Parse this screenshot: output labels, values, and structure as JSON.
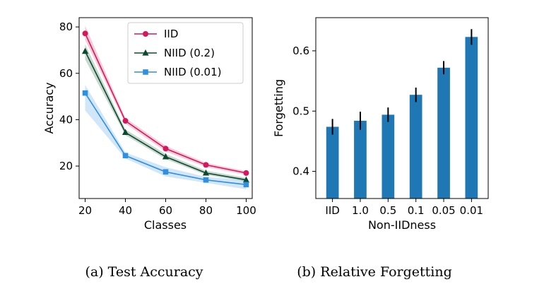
{
  "chart_data": [
    {
      "type": "line",
      "panel": "(a)",
      "caption": "(a)  Test Accuracy",
      "xlabel": "Classes",
      "ylabel": "Accuracy",
      "x": [
        20,
        40,
        60,
        80,
        100
      ],
      "xticks": [
        20,
        40,
        60,
        80,
        100
      ],
      "yticks": [
        20,
        40,
        60,
        80
      ],
      "xlim": [
        17,
        103
      ],
      "ylim": [
        6,
        84
      ],
      "grid": false,
      "legend_position": "top-right",
      "series": [
        {
          "name": "IID",
          "color": "#d6175c",
          "marker": "circle",
          "values": [
            77.2,
            39.5,
            27.5,
            20.5,
            17.0
          ],
          "lower": [
            74.5,
            38.3,
            26.3,
            19.6,
            16.2
          ],
          "upper": [
            80.5,
            40.7,
            28.7,
            21.4,
            17.8
          ]
        },
        {
          "name": "NIID (0.2)",
          "color": "#0b4a2e",
          "marker": "triangle",
          "values": [
            69.5,
            34.5,
            24.0,
            17.0,
            14.0
          ],
          "lower": [
            66.0,
            33.3,
            23.0,
            16.2,
            13.3
          ],
          "upper": [
            72.5,
            35.8,
            25.2,
            18.0,
            14.9
          ]
        },
        {
          "name": "NIID (0.01)",
          "color": "#2f8fe0",
          "marker": "square",
          "values": [
            51.5,
            24.5,
            17.5,
            14.0,
            12.0
          ],
          "lower": [
            44.0,
            23.3,
            15.5,
            12.8,
            10.0
          ],
          "upper": [
            55.0,
            25.8,
            19.5,
            15.3,
            13.8
          ]
        }
      ]
    },
    {
      "type": "bar",
      "panel": "(b)",
      "caption": "(b)  Relative Forgetting",
      "xlabel": "Non-IIDness",
      "ylabel": "Forgetting",
      "categories": [
        "IID",
        "1.0",
        "0.5",
        "0.1",
        "0.05",
        "0.01"
      ],
      "values": [
        0.474,
        0.484,
        0.494,
        0.527,
        0.572,
        0.623
      ],
      "errors": [
        0.013,
        0.015,
        0.012,
        0.012,
        0.011,
        0.013
      ],
      "yticks": [
        0.4,
        0.5,
        0.6
      ],
      "ytick_labels": [
        "0.4",
        "0.5",
        "0.6"
      ],
      "ylim": [
        0.355,
        0.655
      ],
      "bar_color": "#1f77b4",
      "grid": false
    }
  ]
}
